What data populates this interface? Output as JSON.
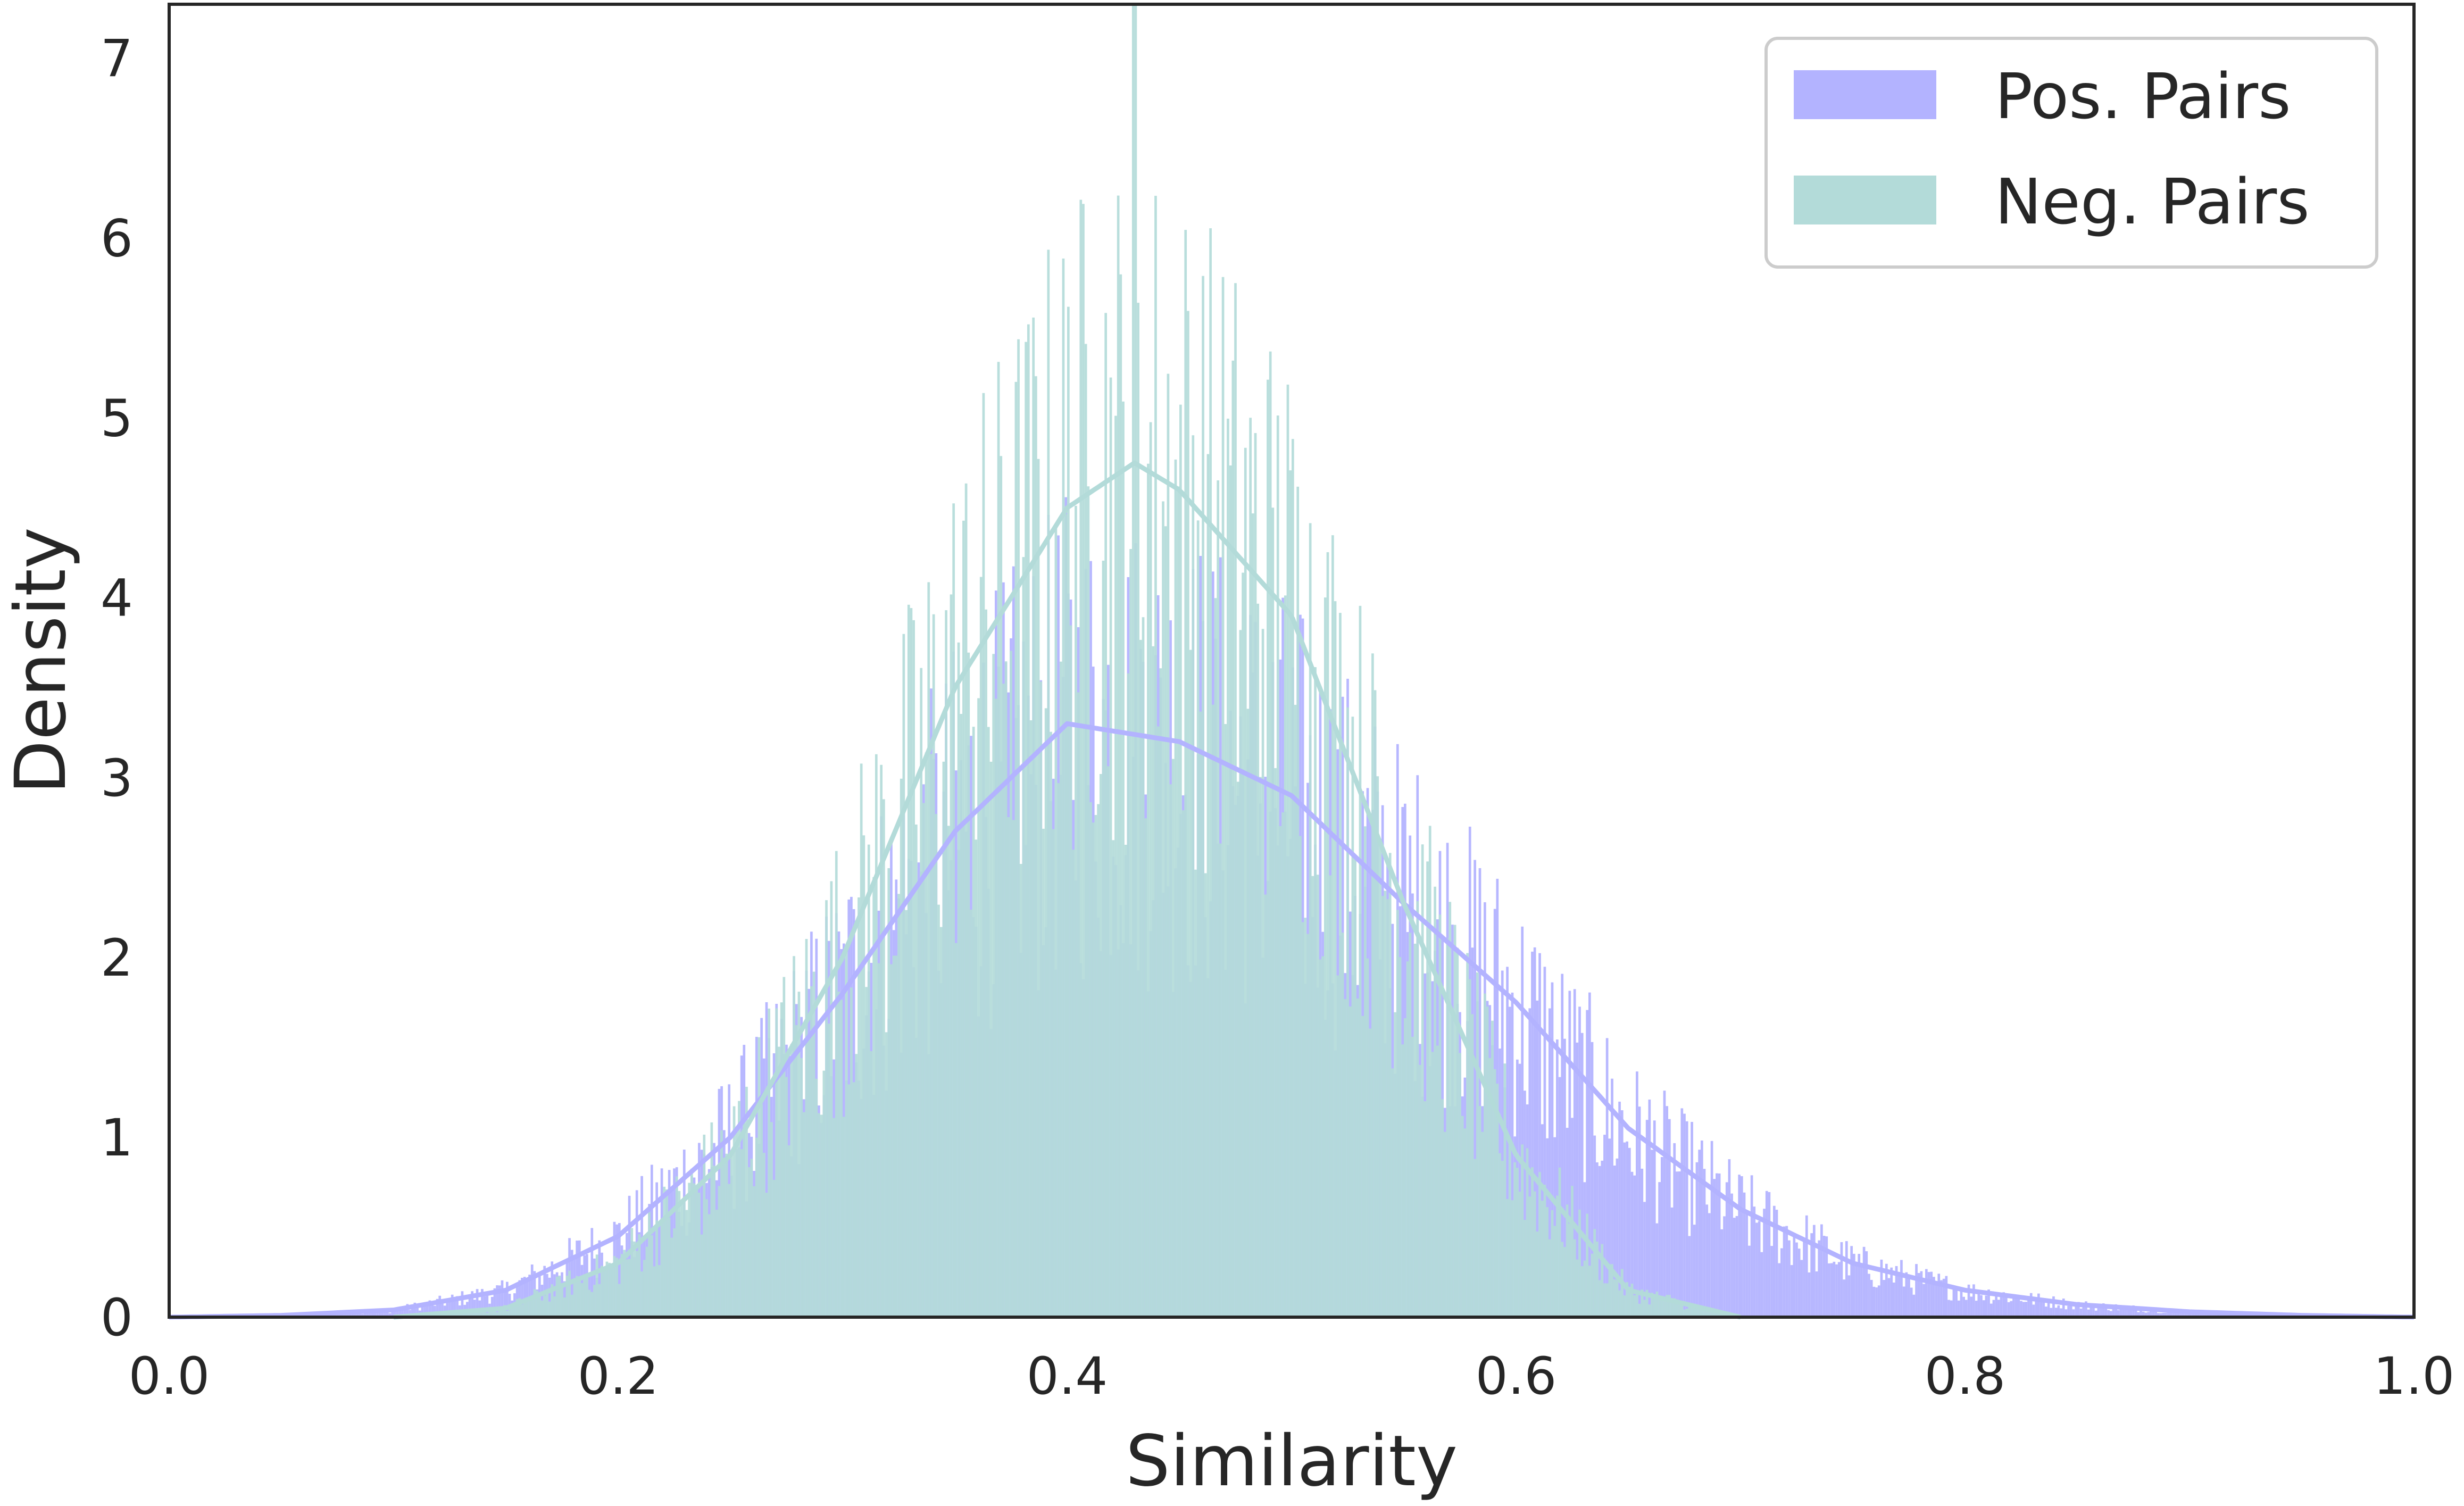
{
  "chart_data": {
    "type": "histogram",
    "xlabel": "Similarity",
    "ylabel": "Density",
    "xlim": [
      0.0,
      1.0
    ],
    "ylim": [
      0,
      7.3
    ],
    "xticks": [
      "0.0",
      "0.2",
      "0.4",
      "0.6",
      "0.8",
      "1.0"
    ],
    "yticks": [
      "0",
      "1",
      "2",
      "3",
      "4",
      "5",
      "6",
      "7"
    ],
    "grid": false,
    "legend_position": "top-right",
    "series": [
      {
        "name": "Pos. Pairs",
        "color": "#b3b3ff",
        "line_color": "#b3b3ff",
        "kde_x": [
          0.0,
          0.05,
          0.1,
          0.15,
          0.2,
          0.25,
          0.3,
          0.35,
          0.4,
          0.45,
          0.5,
          0.55,
          0.6,
          0.65,
          0.7,
          0.75,
          0.8,
          0.85,
          0.9,
          0.95,
          1.0
        ],
        "kde_y": [
          0.0,
          0.01,
          0.04,
          0.15,
          0.45,
          1.0,
          1.8,
          2.7,
          3.3,
          3.2,
          2.9,
          2.3,
          1.75,
          1.05,
          0.6,
          0.3,
          0.15,
          0.07,
          0.03,
          0.01,
          0.0
        ]
      },
      {
        "name": "Neg. Pairs",
        "color": "#b3dbd9",
        "line_color": "#b3dbd9",
        "kde_x": [
          0.1,
          0.15,
          0.2,
          0.25,
          0.3,
          0.35,
          0.4,
          0.43,
          0.45,
          0.5,
          0.55,
          0.6,
          0.65,
          0.7
        ],
        "kde_y": [
          0.0,
          0.05,
          0.3,
          0.9,
          2.0,
          3.5,
          4.5,
          4.75,
          4.6,
          3.9,
          2.3,
          0.9,
          0.15,
          0.0
        ],
        "peak_value": 7.3
      }
    ]
  }
}
